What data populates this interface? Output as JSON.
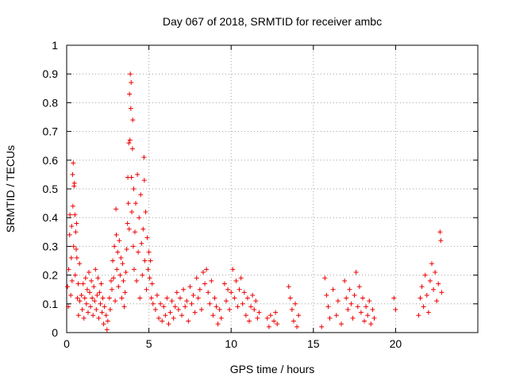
{
  "chart_data": {
    "type": "scatter",
    "title": "Day 067 of 2018, SRMTID for receiver ambc",
    "xlabel": "GPS time / hours",
    "ylabel": "SRMTID / TECUs",
    "xlim": [
      0,
      25
    ],
    "ylim": [
      0,
      1
    ],
    "xticks": [
      0,
      5,
      10,
      15,
      20
    ],
    "yticks": [
      0,
      0.1,
      0.2,
      0.3,
      0.4,
      0.5,
      0.6,
      0.7,
      0.8,
      0.9,
      1
    ],
    "xtick_labels": [
      "0",
      "5",
      "10",
      "15",
      "20"
    ],
    "ytick_labels": [
      "0",
      "0.1",
      "0.2",
      "0.3",
      "0.4",
      "0.5",
      "0.6",
      "0.7",
      "0.8",
      "0.9",
      "1"
    ],
    "grid": true,
    "marker": "+",
    "series": [
      {
        "name": "SRMTID",
        "color": "#ee0000",
        "points": [
          [
            0.05,
            0.16
          ],
          [
            0.1,
            0.09
          ],
          [
            0.12,
            0.22
          ],
          [
            0.18,
            0.34
          ],
          [
            0.2,
            0.41
          ],
          [
            0.25,
            0.13
          ],
          [
            0.28,
            0.26
          ],
          [
            0.3,
            0.37
          ],
          [
            0.33,
            0.18
          ],
          [
            0.36,
            0.55
          ],
          [
            0.38,
            0.44
          ],
          [
            0.4,
            0.59
          ],
          [
            0.42,
            0.3
          ],
          [
            0.45,
            0.51
          ],
          [
            0.47,
            0.52
          ],
          [
            0.5,
            0.41
          ],
          [
            0.52,
            0.2
          ],
          [
            0.55,
            0.35
          ],
          [
            0.58,
            0.29
          ],
          [
            0.6,
            0.38
          ],
          [
            0.62,
            0.26
          ],
          [
            0.65,
            0.12
          ],
          [
            0.7,
            0.17
          ],
          [
            0.72,
            0.06
          ],
          [
            0.78,
            0.24
          ],
          [
            0.8,
            0.11
          ],
          [
            0.9,
            0.13
          ],
          [
            0.95,
            0.08
          ],
          [
            1.0,
            0.17
          ],
          [
            1.05,
            0.05
          ],
          [
            1.1,
            0.12
          ],
          [
            1.15,
            0.19
          ],
          [
            1.2,
            0.1
          ],
          [
            1.25,
            0.15
          ],
          [
            1.3,
            0.07
          ],
          [
            1.35,
            0.21
          ],
          [
            1.4,
            0.14
          ],
          [
            1.45,
            0.09
          ],
          [
            1.5,
            0.18
          ],
          [
            1.55,
            0.12
          ],
          [
            1.6,
            0.06
          ],
          [
            1.65,
            0.16
          ],
          [
            1.7,
            0.11
          ],
          [
            1.75,
            0.22
          ],
          [
            1.8,
            0.08
          ],
          [
            1.85,
            0.13
          ],
          [
            1.9,
            0.19
          ],
          [
            1.95,
            0.05
          ],
          [
            2.0,
            0.14
          ],
          [
            2.05,
            0.1
          ],
          [
            2.1,
            0.17
          ],
          [
            2.15,
            0.07
          ],
          [
            2.2,
            0.12
          ],
          [
            2.25,
            0.03
          ],
          [
            2.3,
            0.09
          ],
          [
            2.4,
            0.06
          ],
          [
            2.45,
            0.01
          ],
          [
            2.5,
            0.04
          ],
          [
            2.6,
            0.12
          ],
          [
            2.65,
            0.08
          ],
          [
            2.7,
            0.18
          ],
          [
            2.75,
            0.15
          ],
          [
            2.8,
            0.25
          ],
          [
            2.85,
            0.19
          ],
          [
            2.9,
            0.3
          ],
          [
            2.95,
            0.11
          ],
          [
            3.0,
            0.43
          ],
          [
            3.02,
            0.34
          ],
          [
            3.05,
            0.22
          ],
          [
            3.1,
            0.28
          ],
          [
            3.15,
            0.16
          ],
          [
            3.2,
            0.32
          ],
          [
            3.25,
            0.2
          ],
          [
            3.3,
            0.26
          ],
          [
            3.35,
            0.12
          ],
          [
            3.4,
            0.24
          ],
          [
            3.45,
            0.18
          ],
          [
            3.5,
            0.09
          ],
          [
            3.55,
            0.14
          ],
          [
            3.6,
            0.21
          ],
          [
            3.65,
            0.29
          ],
          [
            3.7,
            0.38
          ],
          [
            3.72,
            0.54
          ],
          [
            3.75,
            0.45
          ],
          [
            3.78,
            0.66
          ],
          [
            3.8,
            0.36
          ],
          [
            3.82,
            0.83
          ],
          [
            3.85,
            0.67
          ],
          [
            3.87,
            0.9
          ],
          [
            3.9,
            0.78
          ],
          [
            3.92,
            0.87
          ],
          [
            3.94,
            0.54
          ],
          [
            3.96,
            0.42
          ],
          [
            4.0,
            0.64
          ],
          [
            4.02,
            0.74
          ],
          [
            4.05,
            0.3
          ],
          [
            4.08,
            0.5
          ],
          [
            4.1,
            0.22
          ],
          [
            4.15,
            0.35
          ],
          [
            4.2,
            0.45
          ],
          [
            4.25,
            0.18
          ],
          [
            4.3,
            0.55
          ],
          [
            4.35,
            0.28
          ],
          [
            4.4,
            0.4
          ],
          [
            4.45,
            0.12
          ],
          [
            4.5,
            0.48
          ],
          [
            4.55,
            0.31
          ],
          [
            4.6,
            0.2
          ],
          [
            4.65,
            0.36
          ],
          [
            4.7,
            0.61
          ],
          [
            4.72,
            0.53
          ],
          [
            4.75,
            0.25
          ],
          [
            4.8,
            0.42
          ],
          [
            4.85,
            0.15
          ],
          [
            4.9,
            0.33
          ],
          [
            4.95,
            0.22
          ],
          [
            5.0,
            0.28
          ],
          [
            5.05,
            0.19
          ],
          [
            5.1,
            0.25
          ],
          [
            5.15,
            0.12
          ],
          [
            5.2,
            0.17
          ],
          [
            5.25,
            0.1
          ],
          [
            5.4,
            0.08
          ],
          [
            5.5,
            0.13
          ],
          [
            5.6,
            0.05
          ],
          [
            5.7,
            0.1
          ],
          [
            5.8,
            0.04
          ],
          [
            5.9,
            0.09
          ],
          [
            6.0,
            0.06
          ],
          [
            6.1,
            0.12
          ],
          [
            6.2,
            0.03
          ],
          [
            6.3,
            0.07
          ],
          [
            6.4,
            0.11
          ],
          [
            6.5,
            0.05
          ],
          [
            6.6,
            0.09
          ],
          [
            6.7,
            0.14
          ],
          [
            6.8,
            0.08
          ],
          [
            6.9,
            0.12
          ],
          [
            7.0,
            0.06
          ],
          [
            7.1,
            0.15
          ],
          [
            7.2,
            0.09
          ],
          [
            7.3,
            0.11
          ],
          [
            7.4,
            0.04
          ],
          [
            7.5,
            0.16
          ],
          [
            7.6,
            0.1
          ],
          [
            7.7,
            0.13
          ],
          [
            7.8,
            0.07
          ],
          [
            7.9,
            0.19
          ],
          [
            8.0,
            0.12
          ],
          [
            8.1,
            0.15
          ],
          [
            8.2,
            0.08
          ],
          [
            8.3,
            0.21
          ],
          [
            8.4,
            0.17
          ],
          [
            8.5,
            0.22
          ],
          [
            8.6,
            0.14
          ],
          [
            8.7,
            0.1
          ],
          [
            8.8,
            0.18
          ],
          [
            8.9,
            0.06
          ],
          [
            9.0,
            0.12
          ],
          [
            9.1,
            0.09
          ],
          [
            9.2,
            0.03
          ],
          [
            9.3,
            0.08
          ],
          [
            9.4,
            0.05
          ],
          [
            9.6,
            0.17
          ],
          [
            9.7,
            0.11
          ],
          [
            9.8,
            0.15
          ],
          [
            9.9,
            0.08
          ],
          [
            10.0,
            0.14
          ],
          [
            10.1,
            0.22
          ],
          [
            10.2,
            0.12
          ],
          [
            10.3,
            0.18
          ],
          [
            10.4,
            0.09
          ],
          [
            10.5,
            0.15
          ],
          [
            10.6,
            0.19
          ],
          [
            10.7,
            0.1
          ],
          [
            10.8,
            0.14
          ],
          [
            10.9,
            0.06
          ],
          [
            11.0,
            0.12
          ],
          [
            11.1,
            0.04
          ],
          [
            11.2,
            0.09
          ],
          [
            11.3,
            0.13
          ],
          [
            11.4,
            0.08
          ],
          [
            11.5,
            0.11
          ],
          [
            11.6,
            0.05
          ],
          [
            11.7,
            0.07
          ],
          [
            12.2,
            0.05
          ],
          [
            12.3,
            0.02
          ],
          [
            12.4,
            0.06
          ],
          [
            12.6,
            0.04
          ],
          [
            12.7,
            0.07
          ],
          [
            12.8,
            0.03
          ],
          [
            13.5,
            0.16
          ],
          [
            13.6,
            0.12
          ],
          [
            13.7,
            0.08
          ],
          [
            13.8,
            0.04
          ],
          [
            13.9,
            0.1
          ],
          [
            14.0,
            0.02
          ],
          [
            14.1,
            0.06
          ],
          [
            15.5,
            0.02
          ],
          [
            15.7,
            0.19
          ],
          [
            15.8,
            0.13
          ],
          [
            15.9,
            0.09
          ],
          [
            16.0,
            0.05
          ],
          [
            16.2,
            0.15
          ],
          [
            16.4,
            0.06
          ],
          [
            16.5,
            0.11
          ],
          [
            16.7,
            0.03
          ],
          [
            16.9,
            0.18
          ],
          [
            17.0,
            0.12
          ],
          [
            17.1,
            0.08
          ],
          [
            17.2,
            0.15
          ],
          [
            17.3,
            0.1
          ],
          [
            17.4,
            0.05
          ],
          [
            17.5,
            0.13
          ],
          [
            17.6,
            0.21
          ],
          [
            17.7,
            0.09
          ],
          [
            17.8,
            0.16
          ],
          [
            17.9,
            0.07
          ],
          [
            18.0,
            0.12
          ],
          [
            18.1,
            0.04
          ],
          [
            18.2,
            0.09
          ],
          [
            18.3,
            0.06
          ],
          [
            18.4,
            0.11
          ],
          [
            18.5,
            0.03
          ],
          [
            18.6,
            0.08
          ],
          [
            18.7,
            0.05
          ],
          [
            19.9,
            0.12
          ],
          [
            20.0,
            0.08
          ],
          [
            21.4,
            0.06
          ],
          [
            21.5,
            0.12
          ],
          [
            21.6,
            0.16
          ],
          [
            21.7,
            0.09
          ],
          [
            21.8,
            0.2
          ],
          [
            21.9,
            0.13
          ],
          [
            22.0,
            0.07
          ],
          [
            22.1,
            0.18
          ],
          [
            22.2,
            0.24
          ],
          [
            22.3,
            0.15
          ],
          [
            22.4,
            0.21
          ],
          [
            22.5,
            0.11
          ],
          [
            22.6,
            0.17
          ],
          [
            22.7,
            0.35
          ],
          [
            22.75,
            0.32
          ],
          [
            22.8,
            0.14
          ]
        ]
      }
    ]
  }
}
